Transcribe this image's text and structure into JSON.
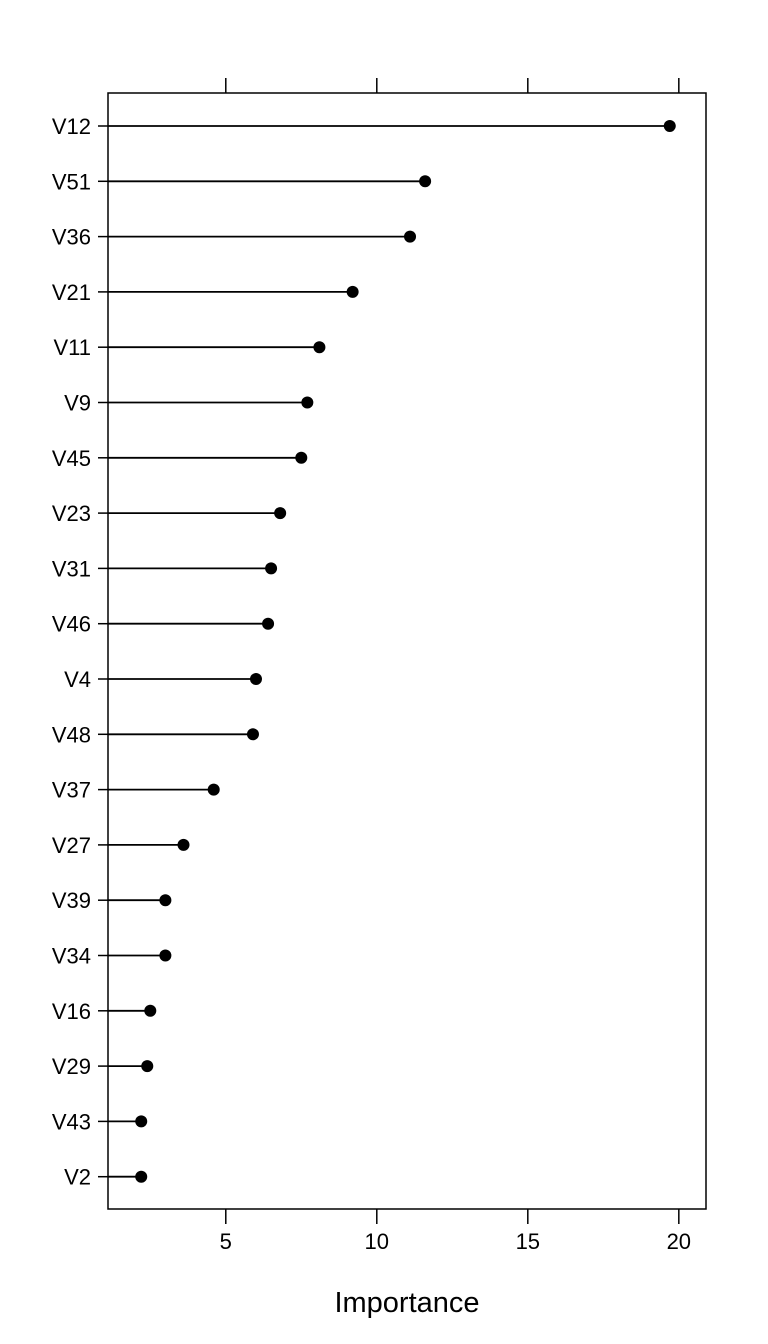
{
  "chart_data": {
    "type": "lollipop",
    "xlabel": "Importance",
    "xlim": [
      1.1,
      20.9
    ],
    "xticks": [
      5,
      10,
      15,
      20
    ],
    "xtick_labels": [
      "5",
      "10",
      "15",
      "20"
    ],
    "grid": false,
    "categories": [
      "V12",
      "V51",
      "V36",
      "V21",
      "V11",
      "V9",
      "V45",
      "V23",
      "V31",
      "V46",
      "V4",
      "V48",
      "V37",
      "V27",
      "V39",
      "V34",
      "V16",
      "V29",
      "V43",
      "V2"
    ],
    "values": [
      19.7,
      11.6,
      11.1,
      9.2,
      8.1,
      7.7,
      7.5,
      6.8,
      6.5,
      6.4,
      6.0,
      5.9,
      4.6,
      3.6,
      3.0,
      3.0,
      2.5,
      2.4,
      2.2,
      2.2
    ]
  }
}
